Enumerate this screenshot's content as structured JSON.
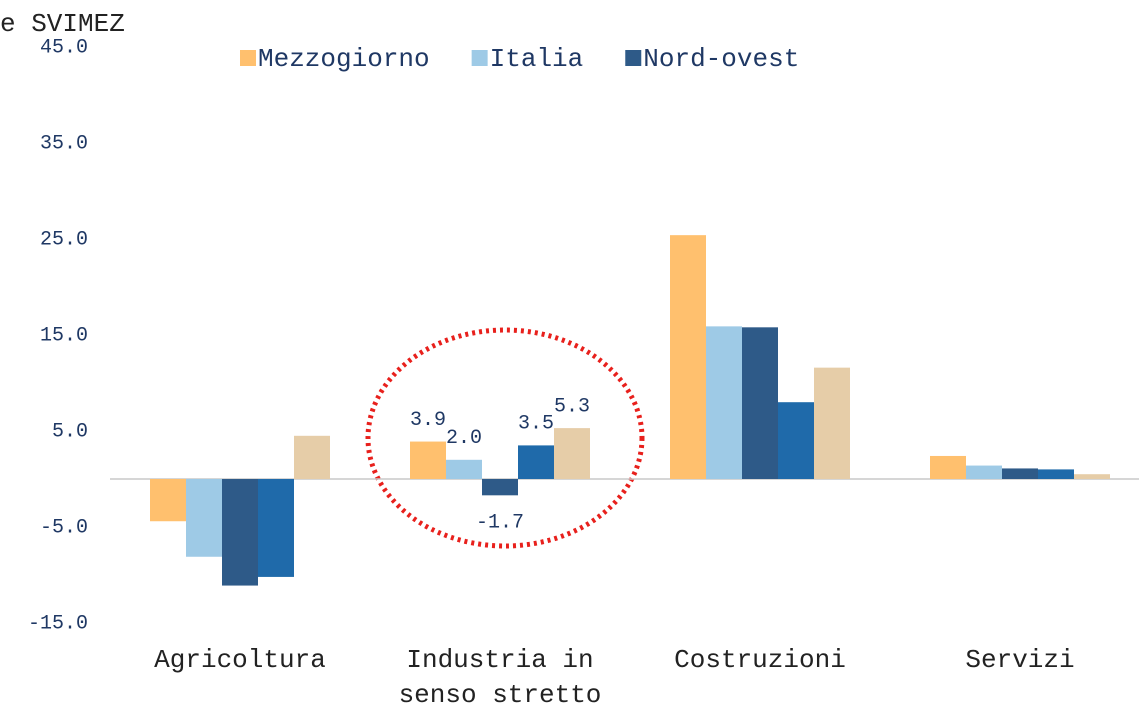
{
  "chart_data": {
    "type": "bar",
    "title": "e SVIMEZ",
    "categories": [
      "Agricoltura",
      "Industria in senso stretto",
      "Costruzioni",
      "Servizi"
    ],
    "series": [
      {
        "name": "Mezzogiorno",
        "color": "#ffc06e",
        "values": [
          -4.4,
          3.9,
          25.4,
          2.4
        ],
        "value_labels": [
          null,
          "3.9",
          null,
          null
        ]
      },
      {
        "name": "Italia",
        "color": "#9ecae6",
        "values": [
          -8.1,
          2.0,
          15.9,
          1.4
        ],
        "value_labels": [
          null,
          "2.0",
          null,
          null
        ]
      },
      {
        "name": "Nord-ovest",
        "color": "#2e5a88",
        "values": [
          -11.1,
          -1.7,
          15.8,
          1.1
        ],
        "value_labels": [
          null,
          "-1.7",
          null,
          null
        ]
      },
      {
        "color": "#1f6aaa",
        "values": [
          -10.2,
          3.5,
          8.0,
          1.0
        ],
        "value_labels": [
          null,
          "3.5",
          null,
          null
        ]
      },
      {
        "color": "#e6cda8",
        "values": [
          4.5,
          5.3,
          11.6,
          0.5
        ],
        "value_labels": [
          null,
          "5.3",
          null,
          null
        ]
      }
    ],
    "ylim": [
      -15,
      45
    ],
    "yticks": [
      {
        "value": -15,
        "label": "-15.0"
      },
      {
        "value": -5,
        "label": "-5.0"
      },
      {
        "value": 5,
        "label": "5.0"
      },
      {
        "value": 15,
        "label": "15.0"
      },
      {
        "value": 25,
        "label": "25.0"
      },
      {
        "value": 35,
        "label": "35.0"
      },
      {
        "value": 45,
        "label": "45.0"
      }
    ],
    "legend": "top",
    "grid": false
  }
}
